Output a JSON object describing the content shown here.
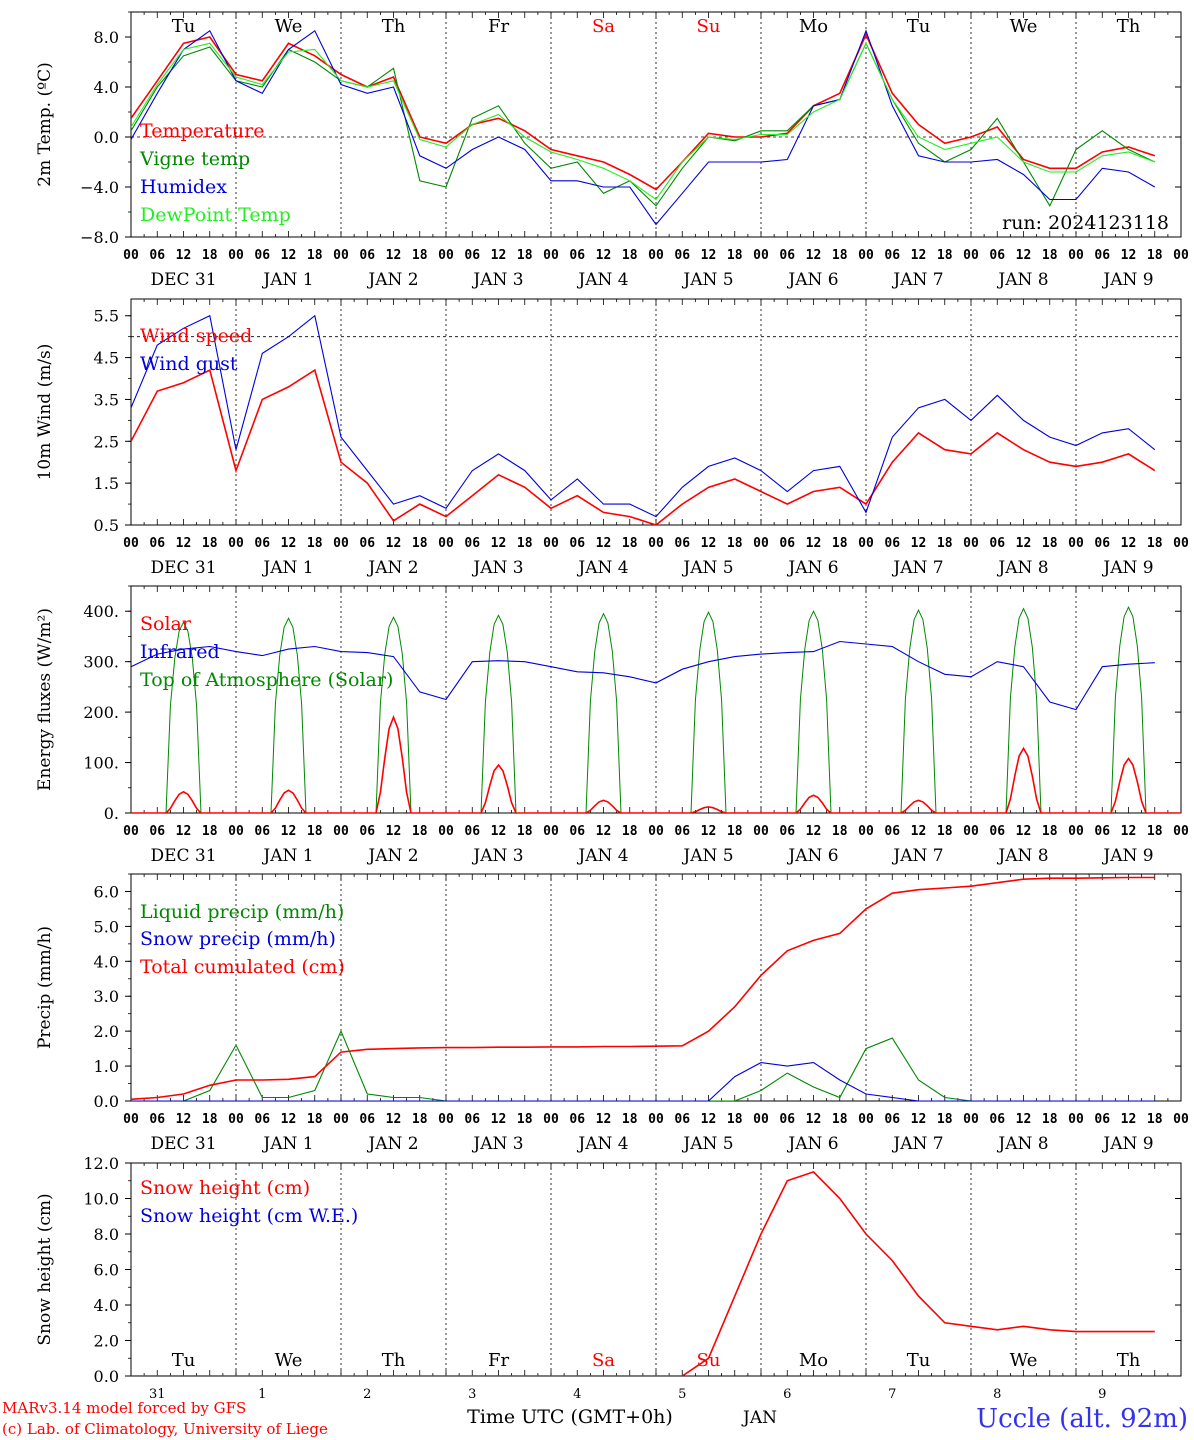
{
  "colors": {
    "red": "#ff0000",
    "green": "#008800",
    "blue": "#0000dd",
    "lightgreen": "#22ee22",
    "weekend": "#ff0000",
    "title": "#3333ee"
  },
  "shared": {
    "hour_ticks": [
      "00",
      "06",
      "12",
      "18"
    ],
    "day_labels": [
      "DEC 31",
      "JAN  1",
      "JAN  2",
      "JAN  3",
      "JAN  4",
      "JAN  5",
      "JAN  6",
      "JAN  7",
      "JAN  8",
      "JAN  9"
    ],
    "weekdays": [
      "Tu",
      "We",
      "Th",
      "Fr",
      "Sa",
      "Su",
      "Mo",
      "Tu",
      "We",
      "Th"
    ],
    "weekend_flags": [
      false,
      false,
      false,
      false,
      true,
      true,
      false,
      false,
      false,
      false
    ],
    "bottom_days": [
      "31",
      "1",
      "2",
      "3",
      "4",
      "5",
      "6",
      "7",
      "8",
      "9"
    ]
  },
  "footer": {
    "model": "MARv3.14 model forced by GFS",
    "lab": "(c) Lab. of Climatology, University of Liege",
    "time_label": "Time UTC (GMT+0h)",
    "month": "JAN",
    "station": "Uccle (alt. 92m)"
  },
  "chart_data": [
    {
      "id": "temp",
      "type": "line",
      "ylabel": "2m Temp. (ºC)",
      "ylim": [
        -8,
        10
      ],
      "yticks": [
        "8.0",
        "4.0",
        "0.0",
        "−4.0",
        "−8.0"
      ],
      "ytick_values": [
        8,
        4,
        0,
        -4,
        -8
      ],
      "ref_line": 0,
      "run": "run: 2024123118",
      "x_hours": [
        0,
        6,
        12,
        18,
        24,
        30,
        36,
        42,
        48,
        54,
        60,
        66,
        72,
        78,
        84,
        90,
        96,
        102,
        108,
        114,
        120,
        126,
        132,
        138,
        144,
        150,
        156,
        162,
        168,
        174,
        180,
        186,
        192,
        198,
        204,
        210,
        216,
        222,
        228,
        234
      ],
      "series": [
        {
          "name": "Temperature",
          "color": "red",
          "values": [
            1.5,
            4.5,
            7.5,
            8.0,
            5.0,
            4.5,
            7.5,
            6.5,
            5.0,
            4.0,
            4.8,
            0.0,
            -0.5,
            1.0,
            1.5,
            0.5,
            -1.0,
            -1.5,
            -2.0,
            -3.0,
            -4.2,
            -2.0,
            0.3,
            0.0,
            0.0,
            0.3,
            2.5,
            3.5,
            8.2,
            3.5,
            1.0,
            -0.5,
            0.0,
            0.8,
            -1.8,
            -2.5,
            -2.5,
            -1.2,
            -0.8,
            -1.5
          ]
        },
        {
          "name": "Vigne temp",
          "color": "green",
          "values": [
            0.5,
            4.0,
            6.5,
            7.2,
            4.5,
            4.0,
            7.0,
            6.0,
            4.5,
            4.0,
            5.5,
            -3.5,
            -4.0,
            1.5,
            2.5,
            -0.5,
            -2.5,
            -2.0,
            -4.5,
            -3.5,
            -5.5,
            -2.5,
            0.0,
            -0.3,
            0.5,
            0.5,
            2.5,
            3.0,
            7.5,
            3.0,
            -0.5,
            -2.0,
            -1.0,
            1.5,
            -2.0,
            -5.5,
            -1.0,
            0.5,
            -1.0,
            -2.0
          ]
        },
        {
          "name": "Humidex",
          "color": "blue",
          "values": [
            -0.2,
            3.5,
            7.0,
            8.5,
            4.5,
            3.5,
            7.0,
            8.5,
            4.2,
            3.5,
            4.0,
            -1.5,
            -2.5,
            -1.0,
            0.0,
            -1.0,
            -3.5,
            -3.5,
            -4.0,
            -4.0,
            -7.0,
            -4.5,
            -2.0,
            -2.0,
            -2.0,
            -1.8,
            2.5,
            3.0,
            8.5,
            2.5,
            -1.5,
            -2.0,
            -2.0,
            -1.8,
            -3.0,
            -5.0,
            -5.0,
            -2.5,
            -2.8,
            -4.0
          ]
        },
        {
          "name": "DewPoint Temp",
          "color": "lightgreen",
          "values": [
            0.8,
            4.2,
            7.0,
            7.5,
            4.8,
            4.2,
            6.8,
            7.0,
            4.5,
            4.0,
            4.5,
            -0.2,
            -0.8,
            1.0,
            1.8,
            0.0,
            -1.2,
            -1.8,
            -2.5,
            -3.5,
            -5.0,
            -2.0,
            0.0,
            -0.2,
            0.2,
            0.2,
            2.0,
            3.0,
            7.5,
            3.0,
            0.0,
            -1.0,
            -0.5,
            0.0,
            -2.0,
            -2.8,
            -2.8,
            -1.5,
            -1.2,
            -2.0
          ]
        }
      ]
    },
    {
      "id": "wind",
      "type": "line",
      "ylabel": "10m Wind (m/s)",
      "ylim": [
        0.5,
        5.9
      ],
      "yticks": [
        "5.5",
        "4.5",
        "3.5",
        "2.5",
        "1.5",
        "0.5"
      ],
      "ytick_values": [
        5.5,
        4.5,
        3.5,
        2.5,
        1.5,
        0.5
      ],
      "ref_line": 5,
      "x_hours": [
        0,
        6,
        12,
        18,
        24,
        30,
        36,
        42,
        48,
        54,
        60,
        66,
        72,
        78,
        84,
        90,
        96,
        102,
        108,
        114,
        120,
        126,
        132,
        138,
        144,
        150,
        156,
        162,
        168,
        174,
        180,
        186,
        192,
        198,
        204,
        210,
        216,
        222,
        228,
        234
      ],
      "series": [
        {
          "name": "Wind speed",
          "color": "red",
          "values": [
            2.5,
            3.7,
            3.9,
            4.2,
            1.8,
            3.5,
            3.8,
            4.2,
            2.0,
            1.5,
            0.6,
            1.0,
            0.7,
            1.2,
            1.7,
            1.4,
            0.9,
            1.2,
            0.8,
            0.7,
            0.5,
            1.0,
            1.4,
            1.6,
            1.3,
            1.0,
            1.3,
            1.4,
            1.0,
            2.0,
            2.7,
            2.3,
            2.2,
            2.7,
            2.3,
            2.0,
            1.9,
            2.0,
            2.2,
            1.8
          ]
        },
        {
          "name": "Wind gust",
          "color": "blue",
          "values": [
            3.3,
            4.8,
            5.2,
            5.5,
            2.3,
            4.6,
            5.0,
            5.5,
            2.6,
            1.8,
            1.0,
            1.2,
            0.9,
            1.8,
            2.2,
            1.8,
            1.1,
            1.6,
            1.0,
            1.0,
            0.7,
            1.4,
            1.9,
            2.1,
            1.8,
            1.3,
            1.8,
            1.9,
            0.8,
            2.6,
            3.3,
            3.5,
            3.0,
            3.6,
            3.0,
            2.6,
            2.4,
            2.7,
            2.8,
            2.3
          ]
        }
      ]
    },
    {
      "id": "energy",
      "type": "line",
      "ylabel": "Energy fluxes (W/m²)",
      "ylim": [
        0,
        450
      ],
      "yticks": [
        "400.",
        "300.",
        "200.",
        "100.",
        "0."
      ],
      "ytick_values": [
        400,
        300,
        200,
        100,
        0
      ],
      "x_hours": [
        0,
        6,
        12,
        18,
        24,
        30,
        36,
        42,
        48,
        54,
        60,
        66,
        72,
        78,
        84,
        90,
        96,
        102,
        108,
        114,
        120,
        126,
        132,
        138,
        144,
        150,
        156,
        162,
        168,
        174,
        180,
        186,
        192,
        198,
        204,
        210,
        216,
        222,
        228,
        234
      ],
      "toa_peaks": [
        378,
        386,
        388,
        392,
        395,
        398,
        400,
        402,
        405,
        408
      ],
      "solar_peaks": [
        42,
        45,
        190,
        95,
        25,
        12,
        35,
        25,
        128,
        108
      ],
      "series": [
        {
          "name": "Solar",
          "color": "red",
          "values": []
        },
        {
          "name": "Infrared",
          "color": "blue",
          "values": [
            290,
            315,
            325,
            330,
            320,
            312,
            325,
            330,
            320,
            318,
            310,
            240,
            225,
            300,
            302,
            300,
            290,
            280,
            278,
            270,
            258,
            285,
            300,
            310,
            315,
            318,
            320,
            340,
            335,
            330,
            300,
            275,
            270,
            300,
            290,
            220,
            205,
            290,
            295,
            298
          ]
        },
        {
          "name": "Top of Atmosphere (Solar)",
          "color": "green",
          "values": []
        }
      ]
    },
    {
      "id": "precip",
      "type": "line",
      "ylabel": "Precip (mm/h)",
      "ylim": [
        0,
        6.5
      ],
      "yticks": [
        "6.0",
        "5.0",
        "4.0",
        "3.0",
        "2.0",
        "1.0",
        "0.0"
      ],
      "ytick_values": [
        6,
        5,
        4,
        3,
        2,
        1,
        0
      ],
      "x_hours": [
        0,
        6,
        12,
        18,
        24,
        30,
        36,
        42,
        48,
        54,
        60,
        66,
        72,
        78,
        84,
        90,
        96,
        102,
        108,
        114,
        120,
        126,
        132,
        138,
        144,
        150,
        156,
        162,
        168,
        174,
        180,
        186,
        192,
        198,
        204,
        210,
        216,
        222,
        228,
        234
      ],
      "series": [
        {
          "name": "Liquid precip (mm/h)",
          "color": "green",
          "values": [
            0,
            0,
            0,
            0.3,
            1.6,
            0.1,
            0.1,
            0.3,
            2.0,
            0.2,
            0.1,
            0.1,
            0,
            0,
            0,
            0,
            0,
            0,
            0,
            0,
            0,
            0,
            0,
            0,
            0.3,
            0.8,
            0.4,
            0.1,
            1.5,
            1.8,
            0.6,
            0.1,
            0,
            0,
            0,
            0,
            0,
            0,
            0,
            0
          ]
        },
        {
          "name": "Snow precip (mm/h)",
          "color": "blue",
          "values": [
            0,
            0,
            0,
            0,
            0,
            0,
            0,
            0,
            0,
            0,
            0,
            0,
            0,
            0,
            0,
            0,
            0,
            0,
            0,
            0,
            0,
            0,
            0,
            0.7,
            1.1,
            1.0,
            1.1,
            0.6,
            0.2,
            0.1,
            0,
            0,
            0,
            0,
            0,
            0,
            0,
            0,
            0,
            0
          ]
        },
        {
          "name": "Total cumulated (cm)",
          "color": "red",
          "values": [
            0.05,
            0.1,
            0.2,
            0.45,
            0.6,
            0.6,
            0.62,
            0.7,
            1.4,
            1.48,
            1.5,
            1.52,
            1.53,
            1.53,
            1.54,
            1.54,
            1.55,
            1.55,
            1.56,
            1.56,
            1.57,
            1.58,
            2.0,
            2.7,
            3.6,
            4.3,
            4.6,
            4.8,
            5.5,
            5.95,
            6.05,
            6.1,
            6.15,
            6.25,
            6.35,
            6.38,
            6.38,
            6.39,
            6.4,
            6.4
          ]
        }
      ]
    },
    {
      "id": "snow",
      "type": "line",
      "ylabel": "Snow height (cm)",
      "ylim": [
        0,
        12
      ],
      "yticks": [
        "12.0",
        "10.0",
        "8.0",
        "6.0",
        "4.0",
        "2.0",
        "0.0"
      ],
      "ytick_values": [
        12,
        10,
        8,
        6,
        4,
        2,
        0
      ],
      "x_hours": [
        0,
        6,
        12,
        18,
        24,
        30,
        36,
        42,
        48,
        54,
        60,
        66,
        72,
        78,
        84,
        90,
        96,
        102,
        108,
        114,
        120,
        126,
        132,
        138,
        144,
        150,
        156,
        162,
        168,
        174,
        180,
        186,
        192,
        198,
        204,
        210,
        216,
        222,
        228,
        234
      ],
      "series": [
        {
          "name": "Snow height (cm)",
          "color": "red",
          "values": [
            0,
            0,
            0,
            0,
            0,
            0,
            0,
            0,
            0,
            0,
            0,
            0,
            0,
            0,
            0,
            0,
            0,
            0,
            0,
            0,
            0,
            0,
            1.0,
            4.5,
            8.0,
            11.0,
            11.5,
            10.0,
            8.0,
            6.5,
            4.5,
            3.0,
            2.8,
            2.6,
            2.8,
            2.6,
            2.5,
            2.5,
            2.5,
            2.5
          ]
        },
        {
          "name": "Snow height (cm W.E.)",
          "color": "blue",
          "values": []
        }
      ]
    }
  ]
}
